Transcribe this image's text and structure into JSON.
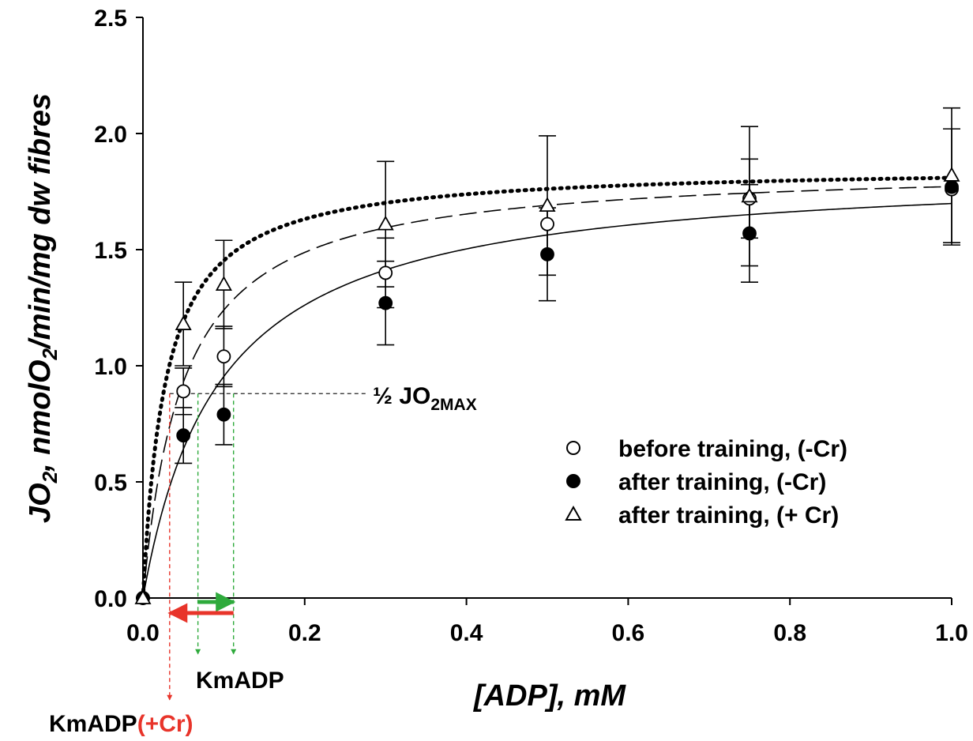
{
  "chart_data": {
    "type": "scatter",
    "xlabel": "[ADP], mM",
    "ylabel": {
      "p1": "JO",
      "p1_sub": "2",
      "p2": ", nmolO",
      "p2_sub": "2",
      "p3": "/min/mg dw fibres"
    },
    "xlim": [
      0,
      1.0
    ],
    "ylim": [
      0,
      2.5
    ],
    "x_ticks": [
      "0.0",
      "0.2",
      "0.4",
      "0.6",
      "0.8",
      "1.0"
    ],
    "x_tick_values": [
      0,
      0.2,
      0.4,
      0.6,
      0.8,
      1.0
    ],
    "y_ticks": [
      "0.0",
      "0.5",
      "1.0",
      "1.5",
      "2.0",
      "2.5"
    ],
    "y_tick_values": [
      0,
      0.5,
      1.0,
      1.5,
      2.0,
      2.5
    ],
    "grid": false,
    "legend_position": "lower-right",
    "series": [
      {
        "name": "before training, (-Cr)",
        "marker": "open-circle",
        "fit_line": "dashed",
        "vmax": 1.86,
        "km": 0.05,
        "x": [
          0,
          0.05,
          0.1,
          0.3,
          0.5,
          0.75,
          1.0
        ],
        "y": [
          0.0,
          0.89,
          1.04,
          1.4,
          1.61,
          1.72,
          1.76
        ],
        "err": [
          0,
          0.1,
          0.13,
          0.15,
          0.0,
          0.17,
          0.0
        ]
      },
      {
        "name": "after training, (-Cr)",
        "marker": "filled-circle",
        "fit_line": "solid",
        "vmax": 1.86,
        "km": 0.095,
        "x": [
          0,
          0.05,
          0.1,
          0.3,
          0.5,
          0.75,
          1.0
        ],
        "y": [
          0.0,
          0.7,
          0.79,
          1.27,
          1.48,
          1.57,
          1.77
        ],
        "err": [
          0,
          0.12,
          0.13,
          0.18,
          0.2,
          0.21,
          0.25
        ]
      },
      {
        "name": "after training, (+ Cr)",
        "marker": "open-triangle",
        "fit_line": "dotted",
        "vmax": 1.86,
        "km": 0.028,
        "x": [
          0,
          0.05,
          0.1,
          0.3,
          0.5,
          0.75,
          1.0
        ],
        "y": [
          0.0,
          1.18,
          1.35,
          1.61,
          1.69,
          1.73,
          1.82
        ],
        "err": [
          0,
          0.18,
          0.19,
          0.27,
          0.3,
          0.3,
          0.29
        ]
      }
    ],
    "annotations": {
      "half_jo2max": {
        "prefix": "½ JO",
        "sub": "2MAX",
        "y": 0.88
      },
      "km_labels": {
        "kmadp": "KmADP",
        "kmadp_cr_prefix": "KmADP",
        "kmadp_cr_suffix": "(+Cr)"
      },
      "km_markers": {
        "green_x": [
          0.068,
          0.112
        ],
        "red_x": 0.033
      }
    },
    "colors": {
      "axis": "#000000",
      "km_green": "#2eaa3c",
      "km_red": "#e8342a",
      "guide": "#222222"
    }
  }
}
